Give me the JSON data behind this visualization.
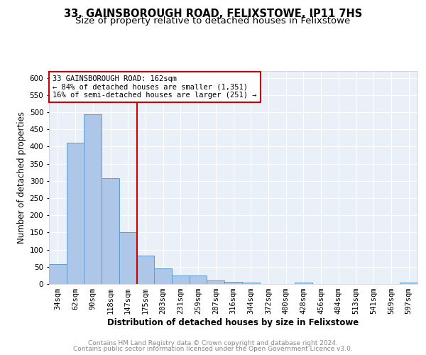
{
  "title": "33, GAINSBOROUGH ROAD, FELIXSTOWE, IP11 7HS",
  "subtitle": "Size of property relative to detached houses in Felixstowe",
  "xlabel": "Distribution of detached houses by size in Felixstowe",
  "ylabel": "Number of detached properties",
  "bar_labels": [
    "34sqm",
    "62sqm",
    "90sqm",
    "118sqm",
    "147sqm",
    "175sqm",
    "203sqm",
    "231sqm",
    "259sqm",
    "287sqm",
    "316sqm",
    "344sqm",
    "372sqm",
    "400sqm",
    "428sqm",
    "456sqm",
    "484sqm",
    "513sqm",
    "541sqm",
    "569sqm",
    "597sqm"
  ],
  "bar_values": [
    57,
    411,
    494,
    307,
    150,
    82,
    45,
    25,
    25,
    10,
    7,
    5,
    0,
    0,
    5,
    0,
    0,
    0,
    0,
    0,
    5
  ],
  "bar_color": "#aec6e8",
  "bar_edge_color": "#5b9bd5",
  "vline_x": 4.5,
  "vline_color": "#cc0000",
  "annotation_line1": "33 GAINSBOROUGH ROAD: 162sqm",
  "annotation_line2": "← 84% of detached houses are smaller (1,351)",
  "annotation_line3": "16% of semi-detached houses are larger (251) →",
  "annotation_box_color": "#ffffff",
  "annotation_box_edge": "#cc0000",
  "ylim": [
    0,
    620
  ],
  "yticks": [
    0,
    50,
    100,
    150,
    200,
    250,
    300,
    350,
    400,
    450,
    500,
    550,
    600
  ],
  "background_color": "#eaf0f8",
  "footer_line1": "Contains HM Land Registry data © Crown copyright and database right 2024.",
  "footer_line2": "Contains public sector information licensed under the Open Government Licence v3.0.",
  "title_fontsize": 10.5,
  "subtitle_fontsize": 9.5,
  "xlabel_fontsize": 8.5,
  "ylabel_fontsize": 8.5,
  "annotation_fontsize": 7.5,
  "footer_fontsize": 6.5,
  "tick_fontsize": 7.5
}
